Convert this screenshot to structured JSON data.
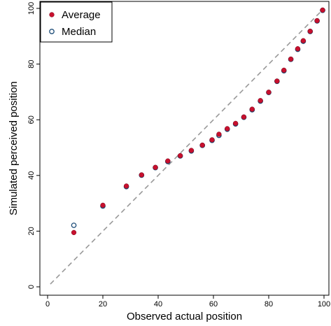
{
  "chart_data": {
    "type": "scatter",
    "xlabel": "Observed actual position",
    "ylabel": "Simulated perceived position",
    "xlim": [
      0,
      100
    ],
    "ylim": [
      0,
      100
    ],
    "xticks": [
      0,
      20,
      40,
      60,
      80,
      100
    ],
    "yticks": [
      0,
      20,
      40,
      60,
      80,
      100
    ],
    "grid": false,
    "legend_position": "top-left",
    "reference_line": {
      "style": "dashed",
      "color": "#999999",
      "from": [
        1,
        1
      ],
      "to": [
        99,
        99
      ]
    },
    "series": [
      {
        "name": "Average",
        "marker": "filled-circle",
        "color": "#c8102e",
        "x": [
          9.5,
          20,
          28.5,
          34,
          39,
          43.5,
          48,
          52,
          56,
          59.5,
          62,
          65,
          68,
          71,
          74,
          77,
          80,
          83,
          85.5,
          88,
          90.5,
          92.5,
          95,
          97.5,
          99.5
        ],
        "y": [
          19.5,
          29.3,
          36.2,
          40.2,
          42.9,
          45.2,
          47.1,
          49.0,
          50.9,
          52.8,
          54.8,
          56.8,
          58.7,
          61.0,
          63.8,
          66.9,
          69.9,
          73.9,
          77.8,
          81.8,
          85.5,
          88.4,
          91.8,
          95.6,
          99.4
        ],
        "values": [
          19.5,
          29.3,
          36.2,
          40.2,
          42.9,
          45.2,
          47.1,
          49.0,
          50.9,
          52.8,
          54.8,
          56.8,
          58.7,
          61.0,
          63.8,
          66.9,
          69.9,
          73.9,
          77.8,
          81.8,
          85.5,
          88.4,
          91.8,
          95.6,
          99.4
        ]
      },
      {
        "name": "Median",
        "marker": "open-circle",
        "color": "#1f4e79",
        "x": [
          9.5,
          20,
          28.5,
          34,
          39,
          43.5,
          48,
          52,
          56,
          59.5,
          62,
          65,
          68,
          71,
          74,
          77,
          80,
          83,
          85.5,
          88,
          90.5,
          92.5,
          95,
          97.5,
          99.5
        ],
        "y": [
          22.1,
          29.0,
          36.0,
          40.1,
          42.8,
          45.0,
          47.0,
          48.8,
          50.8,
          52.6,
          54.4,
          56.6,
          58.5,
          60.9,
          63.6,
          66.7,
          69.8,
          73.8,
          77.6,
          81.7,
          85.3,
          88.2,
          91.7,
          95.5,
          99.3
        ],
        "values": [
          22.1,
          29.0,
          36.0,
          40.1,
          42.8,
          45.0,
          47.0,
          48.8,
          50.8,
          52.6,
          54.4,
          56.6,
          58.5,
          60.9,
          63.6,
          66.7,
          69.8,
          73.8,
          77.6,
          81.7,
          85.3,
          88.2,
          91.7,
          95.5,
          99.3
        ]
      }
    ]
  }
}
